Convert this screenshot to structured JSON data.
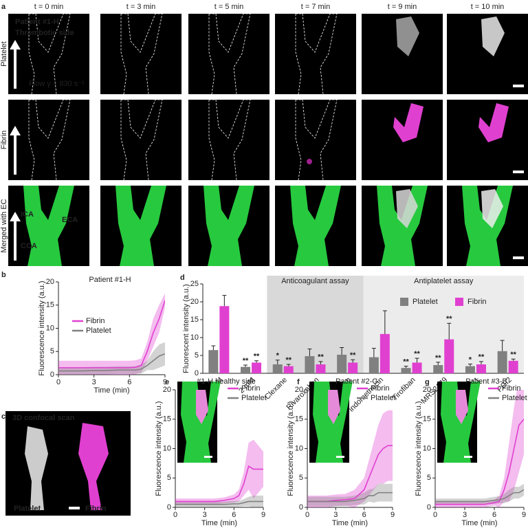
{
  "panel_a": {
    "label": "a",
    "times": [
      "t = 0 min",
      "t = 3 min",
      "t = 5 min",
      "t = 7 min",
      "t = 9 min",
      "t = 10 min"
    ],
    "rows": [
      "Platelet",
      "Fibrin",
      "Merged with EC"
    ],
    "patient": "Patient #1-H",
    "side": "Thrombotic side",
    "flow": "Flow γ = 830 s⁻¹",
    "vessels": [
      "ICA",
      "ECA",
      "CCA"
    ]
  },
  "panel_c": {
    "label": "c",
    "title": "3D confocal scan",
    "channels": [
      "Platelet",
      "Fibrin"
    ]
  },
  "chart_data": [
    {
      "type": "line",
      "panel": "b",
      "title": "Patient #1-H",
      "xlabel": "Time (min)",
      "ylabel": "Fluorescence intensity (a.u.)",
      "xlim": [
        0,
        9
      ],
      "xticks": [
        0,
        3,
        6,
        9
      ],
      "ylim": [
        0,
        20
      ],
      "yticks": [
        0,
        5,
        10,
        15,
        20
      ],
      "legend": "center",
      "x": [
        0,
        1,
        2,
        3,
        4,
        5,
        6,
        6.5,
        7,
        7.5,
        8,
        8.5,
        9
      ],
      "series": [
        {
          "name": "Fibrin",
          "color": "#e040d0",
          "values": [
            1.5,
            1.5,
            1.5,
            1.5,
            1.5,
            1.5,
            1.5,
            1.6,
            2,
            5,
            9,
            12,
            16
          ],
          "error": [
            1.5,
            1.5,
            1.5,
            1.5,
            1.5,
            1.5,
            1.5,
            1.5,
            1.5,
            2,
            3,
            3,
            1.5
          ]
        },
        {
          "name": "Platelet",
          "color": "#808080",
          "values": [
            0.8,
            0.8,
            0.8,
            0.9,
            0.9,
            1,
            1,
            1,
            1.2,
            2,
            3,
            4,
            4.5
          ],
          "error": [
            0.8,
            0.8,
            0.8,
            0.8,
            0.8,
            0.8,
            0.8,
            0.8,
            1,
            1,
            2,
            2.5,
            2.5
          ]
        }
      ]
    },
    {
      "type": "bar",
      "panel": "d",
      "ylabel": "Fluorescent intensity (a.u.)",
      "ylim": [
        0,
        25
      ],
      "yticks": [
        0,
        5,
        10,
        15,
        20,
        25
      ],
      "legend": "top-right",
      "categories": [
        "10 mM",
        "2 mM",
        "Clexane",
        "Rivaroxaban",
        "Apixaban",
        "indomethacin",
        "Tirofiban",
        "MRS2179",
        "PGE1",
        "PGI2"
      ],
      "sections": [
        {
          "label": "Anticoagulant assay",
          "first": "Clexane",
          "last": "Apixaban",
          "color": "#d9d9d9"
        },
        {
          "label": "Antiplatelet assay",
          "first": "indomethacin",
          "last": "PGI2",
          "color": "#ececec"
        }
      ],
      "series": [
        {
          "name": "Platelet",
          "color": "#808080",
          "values": [
            6.5,
            1.8,
            2.5,
            4.8,
            5.2,
            4.5,
            1.5,
            2.3,
            2.0,
            6.2
          ],
          "error": [
            1.2,
            0.5,
            1.2,
            2,
            2,
            2.5,
            0.5,
            0.8,
            0.6,
            3
          ],
          "stars": [
            null,
            "**",
            "*",
            null,
            null,
            null,
            "**",
            "**",
            "*",
            null
          ]
        },
        {
          "name": "Fibrin",
          "color": "#e040d0",
          "values": [
            18.8,
            3.0,
            2.0,
            2.5,
            3.0,
            11,
            3.0,
            9.5,
            2.5,
            3.5
          ],
          "error": [
            3,
            0.5,
            0.5,
            0.8,
            0.8,
            6.5,
            1.2,
            4.5,
            0.8,
            0.5
          ],
          "stars": [
            null,
            "**",
            "**",
            "**",
            "**",
            null,
            "**",
            "**",
            "**",
            "**"
          ]
        }
      ]
    },
    {
      "type": "line",
      "panel": "e",
      "title": "#1-H healthy side",
      "xlabel": "Time (min)",
      "ylabel": "Fluorescence intensity (a.u.)",
      "xlim": [
        0,
        9
      ],
      "xticks": [
        0,
        3,
        6,
        9
      ],
      "ylim": [
        0,
        20
      ],
      "yticks": [
        0,
        5,
        10,
        15,
        20
      ],
      "legend": "top-right",
      "x": [
        0,
        1,
        2,
        3,
        4,
        5,
        6,
        6.5,
        7,
        7.5,
        8,
        8.5,
        9
      ],
      "series": [
        {
          "name": "Fibrin",
          "color": "#e040d0",
          "values": [
            1,
            1,
            1,
            1,
            1,
            1.2,
            1.5,
            2,
            4,
            7,
            6.5,
            6.5,
            6.5
          ],
          "error": [
            0.5,
            0.5,
            0.5,
            0.5,
            0.5,
            0.5,
            0.7,
            1,
            2,
            4,
            5,
            4,
            3
          ]
        },
        {
          "name": "Platelet",
          "color": "#808080",
          "values": [
            0.5,
            0.5,
            0.5,
            0.5,
            0.5,
            0.5,
            0.6,
            0.6,
            0.8,
            1,
            1,
            1,
            1
          ],
          "error": [
            0.5,
            0.5,
            0.5,
            0.5,
            0.5,
            0.5,
            0.5,
            0.5,
            0.6,
            0.8,
            1,
            1,
            1
          ]
        }
      ]
    },
    {
      "type": "line",
      "panel": "f",
      "title": "Patient #2-G",
      "xlabel": "Time (min)",
      "ylabel": "Fluorescence intensity (a.u.)",
      "xlim": [
        0,
        9
      ],
      "xticks": [
        0,
        3,
        6,
        9
      ],
      "ylim": [
        0,
        20
      ],
      "yticks": [
        0,
        5,
        10,
        15,
        20
      ],
      "legend": "top-right",
      "x": [
        0,
        1,
        2,
        3,
        4,
        5,
        6,
        6.5,
        7,
        7.5,
        8,
        8.5,
        9
      ],
      "series": [
        {
          "name": "Fibrin",
          "color": "#e040d0",
          "values": [
            1,
            1,
            1,
            1.2,
            1.3,
            1.5,
            3,
            5,
            7,
            9,
            10,
            10.5,
            10.5
          ],
          "error": [
            1,
            1,
            1,
            1,
            1,
            1.5,
            2,
            3,
            4,
            5,
            6,
            6,
            6
          ]
        },
        {
          "name": "Platelet",
          "color": "#808080",
          "values": [
            1,
            1,
            1,
            1,
            1,
            1.2,
            1.5,
            2,
            2,
            2.5,
            2.5,
            2.5,
            2.5
          ],
          "error": [
            0.8,
            0.8,
            0.8,
            0.8,
            0.8,
            0.8,
            1,
            1,
            1.2,
            1.5,
            1.5,
            1.5,
            1.5
          ]
        }
      ]
    },
    {
      "type": "line",
      "panel": "g",
      "title": "Patient #3-B",
      "xlabel": "Time (min)",
      "ylabel": "Fluorescence intensity (a.u.)",
      "xlim": [
        0,
        9
      ],
      "xticks": [
        0,
        3,
        6,
        9
      ],
      "ylim": [
        0,
        20
      ],
      "yticks": [
        0,
        5,
        10,
        15,
        20
      ],
      "legend": "top-right",
      "x": [
        0,
        1,
        2,
        3,
        4,
        5,
        6,
        6.5,
        7,
        7.5,
        8,
        8.5,
        9
      ],
      "series": [
        {
          "name": "Fibrin",
          "color": "#e040d0",
          "values": [
            0.5,
            0.5,
            0.5,
            0.5,
            0.5,
            0.5,
            0.8,
            1,
            3,
            6,
            10,
            14,
            15
          ],
          "error": [
            0.5,
            0.5,
            0.5,
            0.5,
            0.5,
            0.5,
            0.5,
            1,
            2,
            5,
            7,
            8,
            6
          ]
        },
        {
          "name": "Platelet",
          "color": "#808080",
          "values": [
            1,
            1,
            1,
            1,
            1,
            1,
            1.2,
            1.3,
            1.5,
            2,
            2.5,
            2.5,
            3
          ],
          "error": [
            0.5,
            0.5,
            0.5,
            0.5,
            0.5,
            0.5,
            0.6,
            0.6,
            0.8,
            1,
            1,
            1,
            1
          ]
        }
      ]
    }
  ]
}
